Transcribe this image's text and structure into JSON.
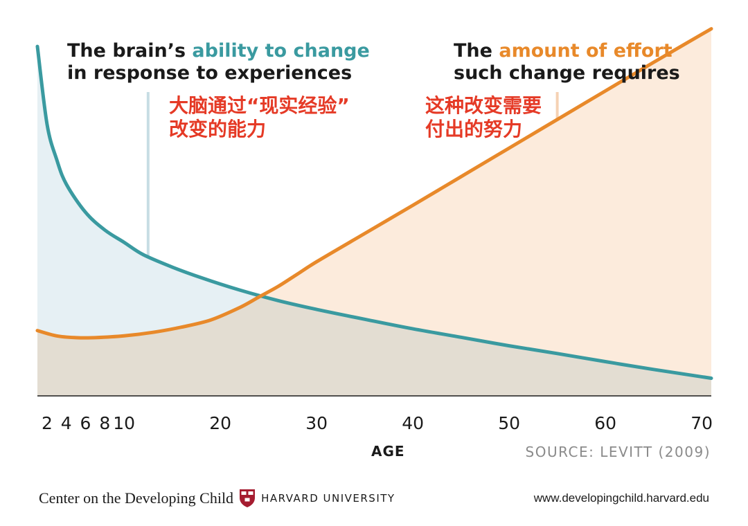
{
  "title_left": {
    "pre": "The brain’s ",
    "highlight": "ability to change",
    "line2": "in response to experiences"
  },
  "title_right": {
    "pre": "The ",
    "highlight": "amount of effort",
    "line2": "such change requires"
  },
  "annotation_left": {
    "line1": "大脑通过“现实经验”",
    "line2": "改变的能力"
  },
  "annotation_right": {
    "line1": "这种改变需要",
    "line2": "付出的努力"
  },
  "axis_title": "AGE",
  "source": "SOURCE: LEVITT (2009)",
  "footer": {
    "center_name": "Center on the Developing Child",
    "university": "HARVARD UNIVERSITY",
    "url": "www.developingchild.harvard.edu",
    "logo_icon": "harvard-shield-icon"
  },
  "colors": {
    "teal": "#3a9aa0",
    "orange": "#e8892a",
    "red_annotation": "#e53a26",
    "teal_fill": "#e6f0f4",
    "orange_fill": "#fcebdc",
    "overlap_fill": "#e5e3d6"
  },
  "chart_data": {
    "type": "line",
    "xlabel": "AGE",
    "x_ticks": [
      2,
      4,
      6,
      8,
      10,
      20,
      30,
      40,
      50,
      60,
      70
    ],
    "xlim": [
      1,
      71
    ],
    "ylim": [
      0,
      100
    ],
    "series": [
      {
        "name": "ability to change",
        "color": "#3a9aa0",
        "x": [
          1,
          2,
          3,
          4,
          6,
          8,
          10,
          12,
          15,
          18,
          22,
          26,
          30,
          35,
          40,
          45,
          50,
          55,
          60,
          65,
          71
        ],
        "y": [
          99,
          77,
          67,
          60,
          52,
          47,
          43.5,
          40,
          36.5,
          33.5,
          30,
          27,
          24.5,
          21.7,
          19,
          16.6,
          14.2,
          12,
          9.7,
          7.5,
          5
        ]
      },
      {
        "name": "effort required",
        "color": "#e8892a",
        "x": [
          1,
          3,
          5,
          7,
          10,
          13,
          16,
          19,
          22,
          24,
          26,
          28,
          30,
          35,
          40,
          45,
          50,
          55,
          60,
          65,
          71
        ],
        "y": [
          18.5,
          17,
          16.5,
          16.5,
          17,
          18,
          19.5,
          21.5,
          25,
          28,
          31,
          34.5,
          38,
          46,
          54,
          62.1,
          70.2,
          78.3,
          86.4,
          94.5,
          104
        ]
      }
    ],
    "markers": [
      {
        "x": 12.5,
        "series": "ability to change",
        "color": "#c7dde4"
      },
      {
        "x": 55,
        "series": "effort required",
        "color": "#f5d2b4"
      }
    ]
  }
}
